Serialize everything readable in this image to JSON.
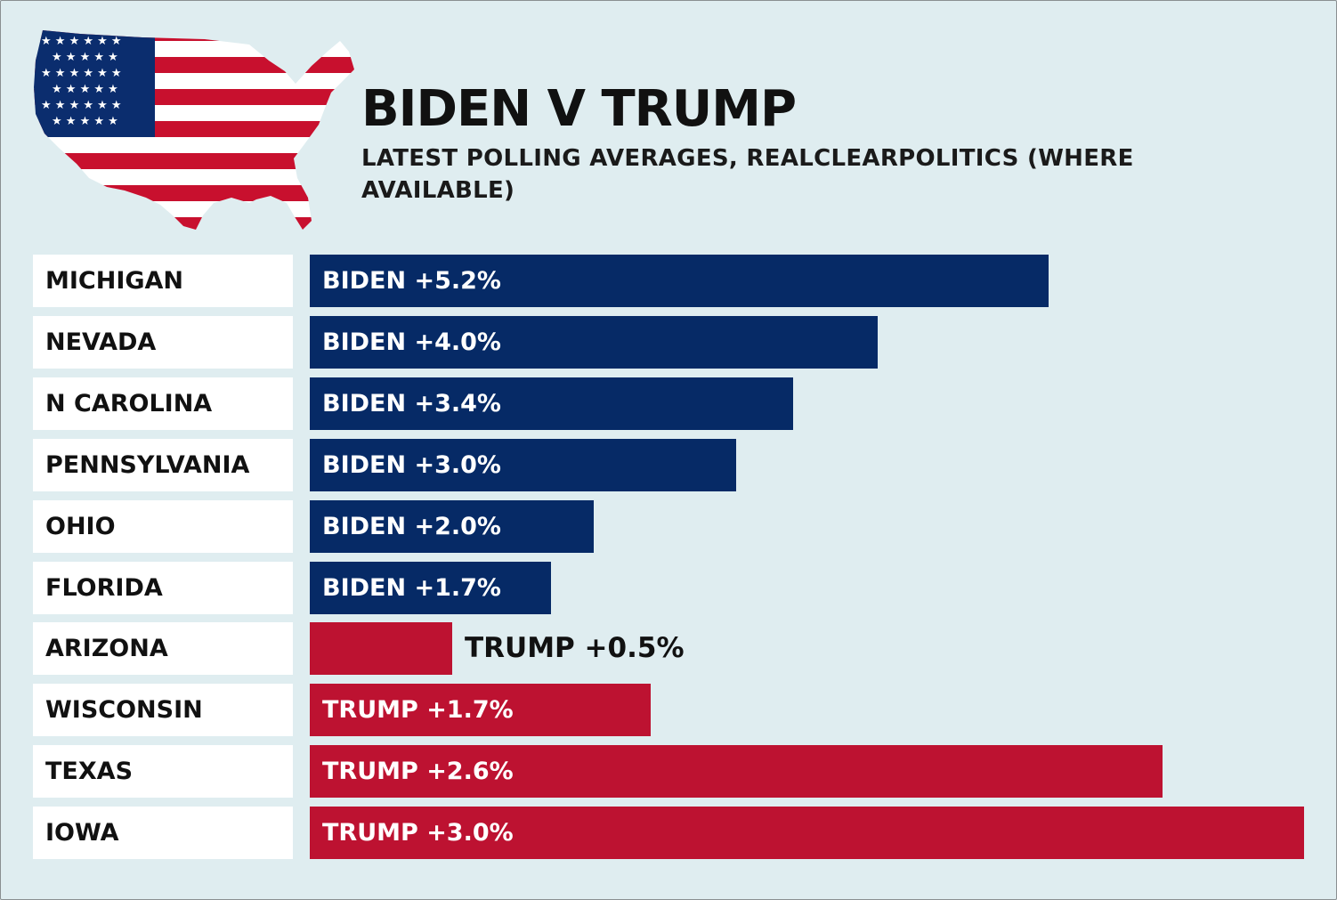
{
  "title": "BIDEN V TRUMP",
  "subtitle": "LATEST POLLING AVERAGES, REALCLEARPOLITICS (WHERE AVAILABLE)",
  "colors": {
    "background": "#dfedf0",
    "biden": "#062a66",
    "trump": "#bd1231",
    "flag_red": "#c8102e",
    "flag_blue": "#0b2d6e",
    "flag_white": "#ffffff"
  },
  "chart_data": {
    "type": "bar",
    "orientation": "horizontal",
    "categories": [
      "MICHIGAN",
      "NEVADA",
      "N CAROLINA",
      "PENNSYLVANIA",
      "OHIO",
      "FLORIDA",
      "ARIZONA",
      "WISCONSIN",
      "TEXAS",
      "IOWA"
    ],
    "values": [
      5.2,
      4.0,
      3.4,
      3.0,
      2.0,
      1.7,
      0.5,
      1.7,
      2.6,
      3.0
    ],
    "bar_lengths": [
      5.2,
      4.0,
      3.4,
      3.0,
      2.0,
      1.7,
      1.0,
      2.4,
      6.0,
      7.0
    ],
    "leaders": [
      "BIDEN",
      "BIDEN",
      "BIDEN",
      "BIDEN",
      "BIDEN",
      "BIDEN",
      "TRUMP",
      "TRUMP",
      "TRUMP",
      "TRUMP"
    ],
    "labels": [
      "BIDEN +5.2%",
      "BIDEN +4.0%",
      "BIDEN +3.4%",
      "BIDEN +3.0%",
      "BIDEN +2.0%",
      "BIDEN +1.7%",
      "TRUMP +0.5%",
      "TRUMP +1.7%",
      "TRUMP +2.6%",
      "TRUMP +3.0%"
    ],
    "title": "BIDEN V TRUMP",
    "xlabel": "",
    "ylabel": "",
    "grid": false,
    "legend": "none"
  }
}
